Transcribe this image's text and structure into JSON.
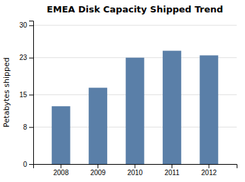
{
  "chart_data": {
    "type": "bar",
    "title": "EMEA Disk Capacity Shipped Trend",
    "ylabel": "Petabytes shipped",
    "categories": [
      "2008",
      "2009",
      "2010",
      "2011",
      "2012"
    ],
    "values": [
      12.5,
      16.5,
      23.0,
      24.5,
      23.5
    ],
    "color": "#5a7fa8",
    "ylim": [
      0,
      31
    ],
    "yticks": [
      0,
      8,
      15,
      23,
      30
    ],
    "grid": true
  }
}
